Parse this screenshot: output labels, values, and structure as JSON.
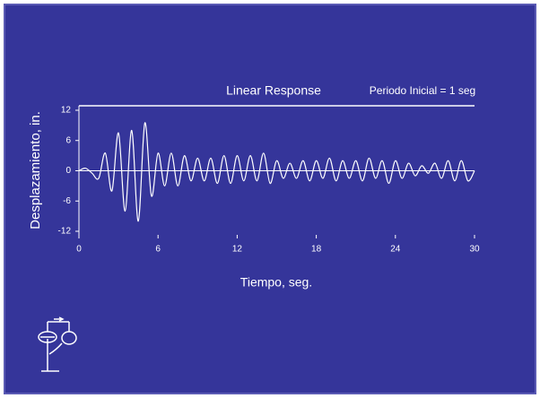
{
  "chart_data": {
    "type": "line",
    "title": "Linear Response",
    "subtitle": "Periodo Inicial = 1 seg",
    "xlabel": "Tiempo, seg.",
    "ylabel": "Desplazamiento, in.",
    "x": [
      0,
      0.5,
      1,
      1.5,
      2,
      2.5,
      3,
      3.5,
      4,
      4.5,
      5,
      5.5,
      6,
      6.5,
      7,
      7.5,
      8,
      8.5,
      9,
      9.5,
      10,
      10.5,
      11,
      11.5,
      12,
      12.5,
      13,
      13.5,
      14,
      14.5,
      15,
      15.5,
      16,
      16.5,
      17,
      17.5,
      18,
      18.5,
      19,
      19.5,
      20,
      20.5,
      21,
      21.5,
      22,
      22.5,
      23,
      23.5,
      24,
      24.5,
      25,
      25.5,
      26,
      26.5,
      27,
      27.5,
      28,
      28.5,
      29,
      29.5,
      30
    ],
    "series": [
      {
        "name": "Linear Response",
        "color": "#ffffff",
        "values": [
          0,
          0.5,
          -0.5,
          -1.5,
          3.5,
          -4,
          7.5,
          -8,
          8,
          -10,
          9.5,
          -5,
          3.5,
          -3,
          3.5,
          -3,
          3,
          -2,
          2.5,
          -2,
          2.5,
          -2.5,
          3,
          -2.5,
          3,
          -2,
          3,
          -2,
          3.5,
          -2.5,
          2,
          -1.5,
          1.5,
          -1.5,
          2,
          -2,
          2,
          -1.5,
          2.5,
          -2,
          2,
          -1.5,
          2,
          -2,
          2.5,
          -1.5,
          2,
          -2.5,
          2,
          -1.5,
          1.5,
          -1,
          1,
          -0.5,
          1.5,
          -1.5,
          2,
          -2,
          2,
          -2,
          0
        ]
      }
    ],
    "xlim": [
      0,
      30
    ],
    "xticks": [
      0,
      6,
      12,
      18,
      24,
      30
    ],
    "ylim": [
      -12,
      12
    ],
    "yticks": [
      -12,
      -6,
      0,
      6,
      12
    ]
  }
}
